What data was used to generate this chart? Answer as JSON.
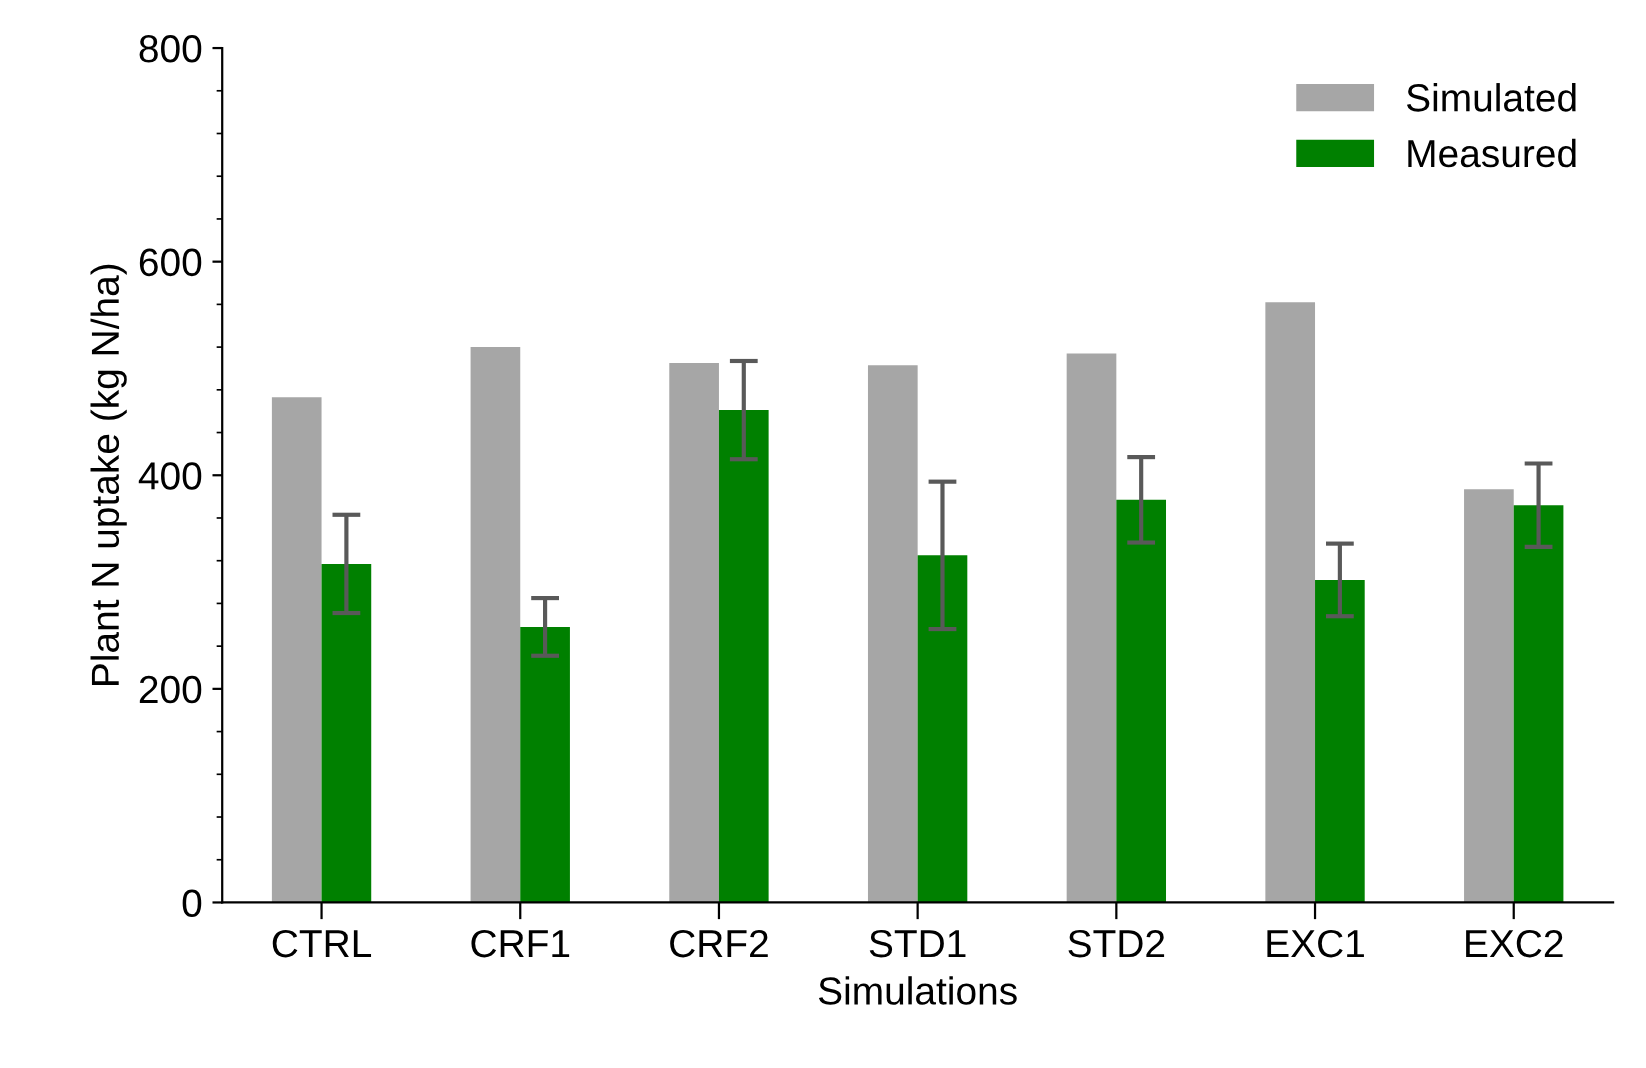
{
  "chart_data": {
    "type": "bar",
    "xlabel": "Simulations",
    "ylabel": "Plant N uptake (kg N/ha)",
    "categories": [
      "CTRL",
      "CRF1",
      "CRF2",
      "STD1",
      "STD2",
      "EXC1",
      "EXC2"
    ],
    "series": [
      {
        "name": "Simulated",
        "color": "#a6a6a6",
        "values": [
          473,
          520,
          505,
          503,
          514,
          562,
          387
        ]
      },
      {
        "name": "Measured",
        "color": "#008000",
        "values": [
          317,
          258,
          461,
          325,
          377,
          302,
          372
        ],
        "errors": [
          46,
          27,
          46,
          69,
          40,
          34,
          39
        ]
      }
    ],
    "ylim": [
      0,
      800
    ],
    "yticks": [
      0,
      200,
      400,
      600,
      800
    ],
    "grid": false,
    "legend": "top right"
  }
}
